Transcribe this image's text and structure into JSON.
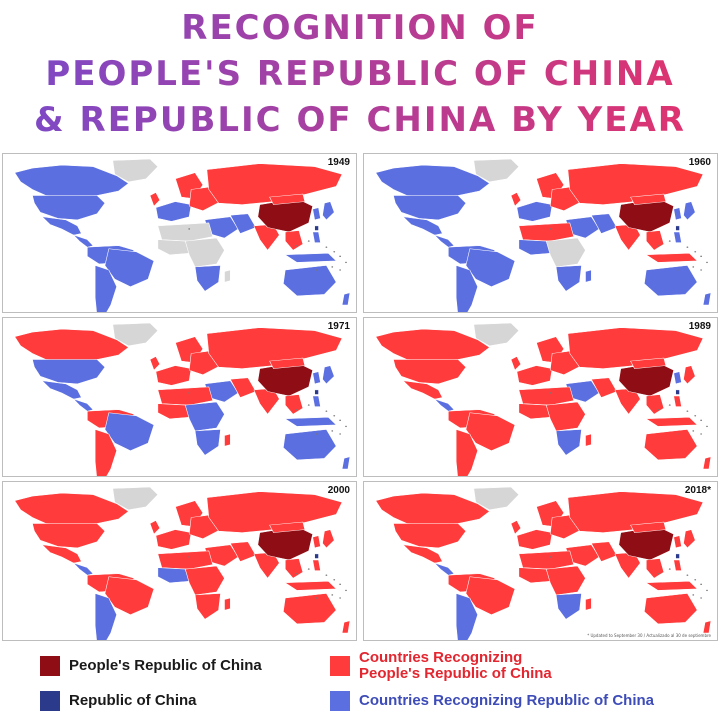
{
  "title": {
    "line1": "RECOGNITION OF",
    "line2": "PEOPLE'S REPUBLIC OF CHINA",
    "line3": "& REPUBLIC OF CHINA BY YEAR"
  },
  "colors": {
    "prc": "#8f0d14",
    "prc_recognizing": "#ff3b3b",
    "roc": "#2c3a8c",
    "roc_recognizing": "#5b6fe0",
    "other": "#d6d6d6",
    "border": "#ffffff",
    "title_start": "#7a4ac9",
    "title_end": "#e3326b"
  },
  "panels": [
    {
      "year": "1949"
    },
    {
      "year": "1960"
    },
    {
      "year": "1971"
    },
    {
      "year": "1989"
    },
    {
      "year": "2000"
    },
    {
      "year": "2018*"
    }
  ],
  "footnote": "* Updated to September 30 / Actualizado al 30 de septiembre",
  "legend": {
    "prc": "People's Republic of China",
    "prc_recognizing_line1": "Countries Recognizing",
    "prc_recognizing_line2": "People's Republic of China",
    "roc": "Republic of China",
    "roc_recognizing": "Countries Recognizing Republic of China"
  }
}
